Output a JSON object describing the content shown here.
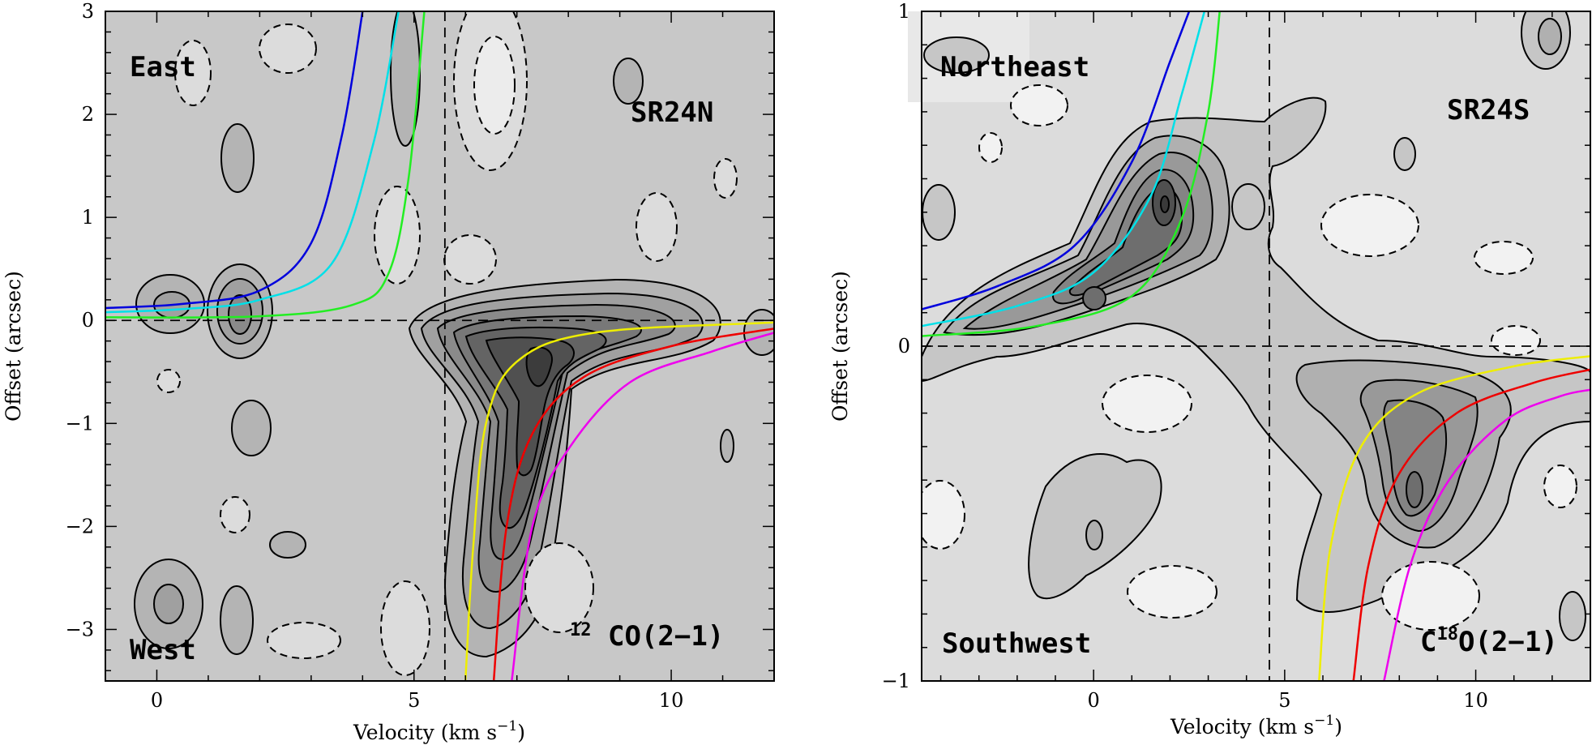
{
  "chart_data": [
    {
      "type": "contour",
      "panel": "left",
      "xlabel": "Velocity (km s",
      "xlabel_exponent": "−1",
      "xlabel_close": ")",
      "ylabel": "Offset (arcsec)",
      "xlim": [
        -1,
        12
      ],
      "ylim": [
        -3.5,
        3
      ],
      "x_ticks": [
        0,
        5,
        10
      ],
      "y_ticks": [
        3,
        2,
        1,
        0,
        -1,
        -2,
        -3
      ],
      "x_tick_labels": [
        "0",
        "5",
        "10"
      ],
      "y_tick_labels": [
        "3",
        "2",
        "1",
        "0",
        "−1",
        "−2",
        "−3"
      ],
      "dashed_reference_lines": {
        "velocity": 5.6,
        "offset": 0
      },
      "labels": {
        "top_left": "East",
        "bottom_left": "West",
        "top_right": "SR24N",
        "molecule_prefix": "12",
        "molecule_main": "CO(2−1)"
      },
      "curves": [
        {
          "color": "#0000dd",
          "points": [
            [
              -1.0,
              0.12
            ],
            [
              0.5,
              0.16
            ],
            [
              2.0,
              0.29
            ],
            [
              3.0,
              0.75
            ],
            [
              3.6,
              1.8
            ],
            [
              4.0,
              3.0
            ]
          ]
        },
        {
          "color": "#00e0e8",
          "points": [
            [
              -1.0,
              0.08
            ],
            [
              0.5,
              0.11
            ],
            [
              2.0,
              0.2
            ],
            [
              3.4,
              0.55
            ],
            [
              4.2,
              1.7
            ],
            [
              4.7,
              3.0
            ]
          ]
        },
        {
          "color": "#22ee22",
          "points": [
            [
              -1.0,
              0.03
            ],
            [
              2.0,
              0.04
            ],
            [
              3.8,
              0.15
            ],
            [
              4.5,
              0.45
            ],
            [
              4.9,
              1.4
            ],
            [
              5.2,
              3.0
            ]
          ]
        },
        {
          "color": "#eeee00",
          "points": [
            [
              6.0,
              -3.5
            ],
            [
              6.15,
              -2.2
            ],
            [
              6.4,
              -1.0
            ],
            [
              7.0,
              -0.4
            ],
            [
              8.5,
              -0.12
            ],
            [
              12.0,
              -0.02
            ]
          ]
        },
        {
          "color": "#ee0000",
          "points": [
            [
              6.55,
              -3.5
            ],
            [
              6.8,
              -2.0
            ],
            [
              7.3,
              -1.1
            ],
            [
              8.3,
              -0.55
            ],
            [
              10.0,
              -0.25
            ],
            [
              12.0,
              -0.08
            ]
          ]
        },
        {
          "color": "#ee00ee",
          "points": [
            [
              6.9,
              -3.5
            ],
            [
              7.3,
              -2.0
            ],
            [
              8.0,
              -1.25
            ],
            [
              9.2,
              -0.6
            ],
            [
              10.8,
              -0.3
            ],
            [
              12.0,
              -0.12
            ]
          ]
        }
      ]
    },
    {
      "type": "contour",
      "panel": "right",
      "xlabel": "Velocity (km s",
      "xlabel_exponent": "−1",
      "xlabel_close": ")",
      "ylabel": "Offset (arcsec)",
      "xlim": [
        -4.5,
        13
      ],
      "ylim": [
        -1,
        1
      ],
      "x_ticks": [
        0,
        5,
        10
      ],
      "y_ticks": [
        1,
        0,
        -1
      ],
      "x_tick_labels": [
        "0",
        "5",
        "10"
      ],
      "y_tick_labels": [
        "1",
        "0",
        "−1"
      ],
      "dashed_reference_lines": {
        "velocity": 4.6,
        "offset": 0
      },
      "labels": {
        "top_left": "Northeast",
        "bottom_left": "Southwest",
        "top_right": "SR24S",
        "molecule_prefix": "C",
        "molecule_superscript": "18",
        "molecule_main": "O(2−1)"
      },
      "curves": [
        {
          "color": "#0000dd",
          "points": [
            [
              -4.5,
              0.11
            ],
            [
              -2.5,
              0.18
            ],
            [
              -0.5,
              0.3
            ],
            [
              1.0,
              0.55
            ],
            [
              2.0,
              0.85
            ],
            [
              2.5,
              1.0
            ]
          ]
        },
        {
          "color": "#00e0e8",
          "points": [
            [
              -4.5,
              0.06
            ],
            [
              -2.0,
              0.12
            ],
            [
              0.0,
              0.22
            ],
            [
              1.5,
              0.45
            ],
            [
              2.3,
              0.75
            ],
            [
              2.9,
              1.0
            ]
          ]
        },
        {
          "color": "#22ee22",
          "points": [
            [
              -4.5,
              0.03
            ],
            [
              -1.5,
              0.06
            ],
            [
              1.0,
              0.15
            ],
            [
              2.3,
              0.38
            ],
            [
              3.0,
              0.7
            ],
            [
              3.3,
              1.0
            ]
          ]
        },
        {
          "color": "#eeee00",
          "points": [
            [
              5.9,
              -1.0
            ],
            [
              6.2,
              -0.6
            ],
            [
              7.0,
              -0.3
            ],
            [
              8.5,
              -0.14
            ],
            [
              11.0,
              -0.06
            ],
            [
              13.0,
              -0.03
            ]
          ]
        },
        {
          "color": "#ee0000",
          "points": [
            [
              6.8,
              -1.0
            ],
            [
              7.2,
              -0.65
            ],
            [
              8.0,
              -0.38
            ],
            [
              9.5,
              -0.2
            ],
            [
              11.5,
              -0.11
            ],
            [
              13.0,
              -0.07
            ]
          ]
        },
        {
          "color": "#ee00ee",
          "points": [
            [
              7.6,
              -1.0
            ],
            [
              8.3,
              -0.65
            ],
            [
              9.3,
              -0.4
            ],
            [
              10.8,
              -0.22
            ],
            [
              12.2,
              -0.15
            ],
            [
              13.0,
              -0.13
            ]
          ]
        }
      ]
    }
  ]
}
